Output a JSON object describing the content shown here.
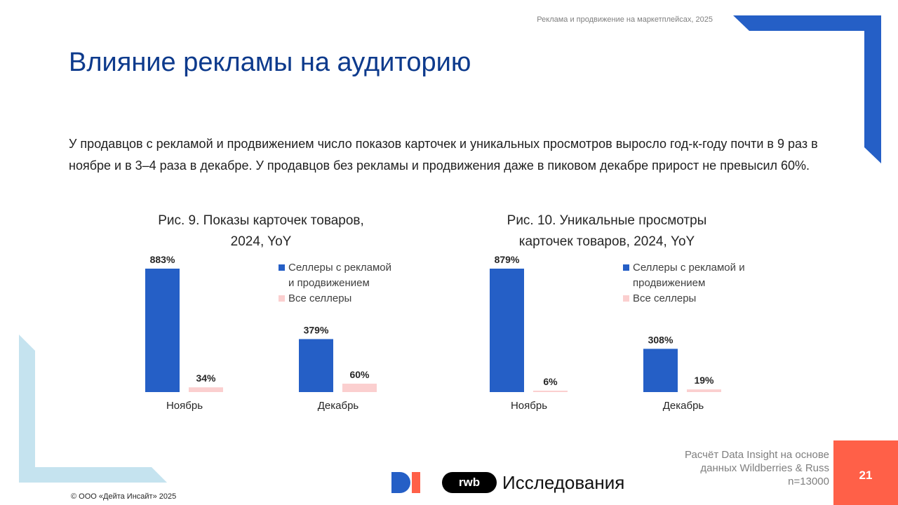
{
  "header": {
    "source": "Реклама и продвижение на маркетплейсах, 2025"
  },
  "title": "Влияние рекламы на аудиторию",
  "lead": "У продавцов с рекламой и продвижением число показов карточек и уникальных просмотров выросло год-к-году почти в 9 раз в ноябре и в 3–4 раза в декабре. У продавцов без рекламы и продвижения даже в пиковом декабре прирост не превысил 60%.",
  "colors": {
    "blue": "#255fc6",
    "pink": "#fbcfcf",
    "title_blue": "#0d3a8c",
    "accent_red": "#ff6048",
    "light_blue": "#c5e3ef"
  },
  "chart_data": [
    {
      "type": "bar",
      "title_line1": "Рис. 9. Показы карточек товаров,",
      "title_line2": "2024, YoY",
      "categories": [
        "Ноябрь",
        "Декабрь"
      ],
      "series": [
        {
          "name": "Селлеры с рекламой и продвижением",
          "legend_line1": "Селлеры с рекламой",
          "legend_line2": "и продвижением",
          "values": [
            883,
            379
          ],
          "labels": [
            "883%",
            "379%"
          ],
          "color": "#255fc6"
        },
        {
          "name": "Все селлеры",
          "legend_line1": "Все селлеры",
          "values": [
            34,
            60
          ],
          "labels": [
            "34%",
            "60%"
          ],
          "color": "#fbcfcf"
        }
      ],
      "unit": "%",
      "legend": "right"
    },
    {
      "type": "bar",
      "title_line1": "Рис. 10. Уникальные просмотры",
      "title_line2": "карточек товаров, 2024, YoY",
      "categories": [
        "Ноябрь",
        "Декабрь"
      ],
      "series": [
        {
          "name": "Селлеры с рекламой и продвижением",
          "legend_line1": "Селлеры с рекламой и",
          "legend_line2": "продвижением",
          "values": [
            879,
            308
          ],
          "labels": [
            "879%",
            "308%"
          ],
          "color": "#255fc6"
        },
        {
          "name": "Все селлеры",
          "legend_line1": "Все селлеры",
          "values": [
            6,
            19
          ],
          "labels": [
            "6%",
            "19%"
          ],
          "color": "#fbcfcf"
        }
      ],
      "unit": "%",
      "legend": "right"
    }
  ],
  "footer": {
    "source_line1": "Расчёт Data Insight на основе",
    "source_line2": "данных Wildberries & Russ",
    "source_line3": "n=13000",
    "page_number": "21",
    "copyright": "© ООО «Дейта Инсайт» 2025",
    "rwb_logo_text": "rwb",
    "brand_text": "Исследования"
  }
}
